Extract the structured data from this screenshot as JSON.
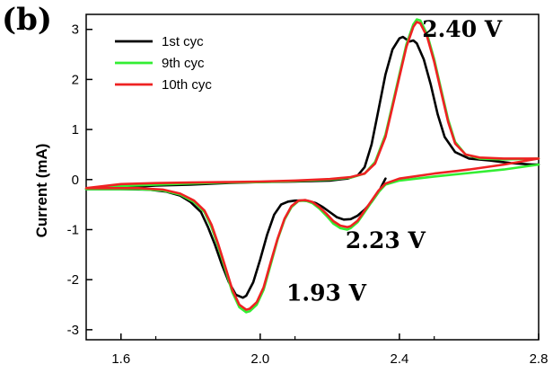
{
  "chart_data": {
    "type": "line",
    "panel_label": "(b)",
    "xlabel": "",
    "ylabel": "Current (mA)",
    "xlim": [
      1.5,
      2.8
    ],
    "ylim": [
      -3.2,
      3.3
    ],
    "x_ticks": [
      "1.6",
      "2.0",
      "2.4",
      "2.8"
    ],
    "x_tick_values": [
      1.6,
      2.0,
      2.4,
      2.8
    ],
    "y_ticks": [
      "-3",
      "-2",
      "-1",
      "0",
      "1",
      "2",
      "3"
    ],
    "y_tick_values": [
      -3,
      -2,
      -1,
      0,
      1,
      2,
      3
    ],
    "legend_position": "top-left",
    "annotations": [
      {
        "text": "2.40 V",
        "x": 2.58,
        "y": 2.85
      },
      {
        "text": "2.23 V",
        "x": 2.36,
        "y": -1.37
      },
      {
        "text": "1.93 V",
        "x": 2.19,
        "y": -2.42
      }
    ],
    "series": [
      {
        "name": "1st cyc",
        "color": "#000000",
        "points": [
          [
            2.36,
            0.02
          ],
          [
            2.34,
            -0.25
          ],
          [
            2.32,
            -0.45
          ],
          [
            2.3,
            -0.6
          ],
          [
            2.28,
            -0.72
          ],
          [
            2.26,
            -0.79
          ],
          [
            2.24,
            -0.8
          ],
          [
            2.22,
            -0.75
          ],
          [
            2.2,
            -0.65
          ],
          [
            2.18,
            -0.55
          ],
          [
            2.16,
            -0.47
          ],
          [
            2.14,
            -0.43
          ],
          [
            2.12,
            -0.42
          ],
          [
            2.1,
            -0.42
          ],
          [
            2.08,
            -0.44
          ],
          [
            2.06,
            -0.5
          ],
          [
            2.04,
            -0.7
          ],
          [
            2.02,
            -1.1
          ],
          [
            2.0,
            -1.6
          ],
          [
            1.98,
            -2.05
          ],
          [
            1.96,
            -2.32
          ],
          [
            1.95,
            -2.36
          ],
          [
            1.93,
            -2.3
          ],
          [
            1.91,
            -2.05
          ],
          [
            1.89,
            -1.7
          ],
          [
            1.87,
            -1.3
          ],
          [
            1.85,
            -0.95
          ],
          [
            1.83,
            -0.65
          ],
          [
            1.8,
            -0.45
          ],
          [
            1.77,
            -0.32
          ],
          [
            1.73,
            -0.24
          ],
          [
            1.68,
            -0.2
          ],
          [
            1.6,
            -0.19
          ],
          [
            1.5,
            -0.19
          ],
          [
            1.6,
            -0.16
          ],
          [
            1.7,
            -0.12
          ],
          [
            1.8,
            -0.1
          ],
          [
            1.9,
            -0.07
          ],
          [
            2.0,
            -0.05
          ],
          [
            2.1,
            -0.04
          ],
          [
            2.2,
            -0.02
          ],
          [
            2.25,
            0.02
          ],
          [
            2.28,
            0.08
          ],
          [
            2.3,
            0.25
          ],
          [
            2.32,
            0.7
          ],
          [
            2.34,
            1.4
          ],
          [
            2.36,
            2.1
          ],
          [
            2.38,
            2.6
          ],
          [
            2.4,
            2.82
          ],
          [
            2.41,
            2.85
          ],
          [
            2.42,
            2.8
          ],
          [
            2.43,
            2.76
          ],
          [
            2.44,
            2.78
          ],
          [
            2.45,
            2.72
          ],
          [
            2.47,
            2.4
          ],
          [
            2.49,
            1.9
          ],
          [
            2.51,
            1.3
          ],
          [
            2.53,
            0.85
          ],
          [
            2.56,
            0.55
          ],
          [
            2.6,
            0.42
          ],
          [
            2.66,
            0.38
          ],
          [
            2.72,
            0.33
          ],
          [
            2.78,
            0.3
          ],
          [
            2.8,
            0.3
          ]
        ]
      },
      {
        "name": "9th cyc",
        "color": "#33ee33",
        "points": [
          [
            2.8,
            0.3
          ],
          [
            2.7,
            0.2
          ],
          [
            2.6,
            0.13
          ],
          [
            2.5,
            0.06
          ],
          [
            2.4,
            -0.02
          ],
          [
            2.36,
            -0.1
          ],
          [
            2.34,
            -0.25
          ],
          [
            2.32,
            -0.45
          ],
          [
            2.3,
            -0.65
          ],
          [
            2.28,
            -0.85
          ],
          [
            2.26,
            -0.97
          ],
          [
            2.25,
            -1.0
          ],
          [
            2.23,
            -0.97
          ],
          [
            2.21,
            -0.88
          ],
          [
            2.19,
            -0.72
          ],
          [
            2.17,
            -0.58
          ],
          [
            2.15,
            -0.47
          ],
          [
            2.13,
            -0.42
          ],
          [
            2.11,
            -0.43
          ],
          [
            2.09,
            -0.55
          ],
          [
            2.07,
            -0.8
          ],
          [
            2.05,
            -1.2
          ],
          [
            2.03,
            -1.7
          ],
          [
            2.01,
            -2.2
          ],
          [
            1.99,
            -2.5
          ],
          [
            1.97,
            -2.63
          ],
          [
            1.96,
            -2.65
          ],
          [
            1.94,
            -2.55
          ],
          [
            1.92,
            -2.25
          ],
          [
            1.9,
            -1.8
          ],
          [
            1.88,
            -1.35
          ],
          [
            1.86,
            -0.95
          ],
          [
            1.84,
            -0.65
          ],
          [
            1.81,
            -0.45
          ],
          [
            1.77,
            -0.3
          ],
          [
            1.72,
            -0.22
          ],
          [
            1.65,
            -0.19
          ],
          [
            1.5,
            -0.19
          ],
          [
            1.6,
            -0.13
          ],
          [
            1.7,
            -0.1
          ],
          [
            1.8,
            -0.08
          ],
          [
            1.9,
            -0.06
          ],
          [
            2.0,
            -0.05
          ],
          [
            2.1,
            -0.03
          ],
          [
            2.2,
            0.0
          ],
          [
            2.26,
            0.04
          ],
          [
            2.3,
            0.12
          ],
          [
            2.33,
            0.35
          ],
          [
            2.36,
            0.9
          ],
          [
            2.38,
            1.5
          ],
          [
            2.4,
            2.1
          ],
          [
            2.42,
            2.7
          ],
          [
            2.44,
            3.1
          ],
          [
            2.45,
            3.2
          ],
          [
            2.46,
            3.18
          ],
          [
            2.48,
            2.9
          ],
          [
            2.5,
            2.4
          ],
          [
            2.52,
            1.8
          ],
          [
            2.54,
            1.2
          ],
          [
            2.56,
            0.75
          ],
          [
            2.59,
            0.5
          ],
          [
            2.63,
            0.42
          ],
          [
            2.7,
            0.4
          ],
          [
            2.8,
            0.42
          ]
        ]
      },
      {
        "name": "10th cyc",
        "color": "#ee2222",
        "points": [
          [
            2.8,
            0.42
          ],
          [
            2.7,
            0.3
          ],
          [
            2.6,
            0.2
          ],
          [
            2.5,
            0.12
          ],
          [
            2.4,
            0.02
          ],
          [
            2.36,
            -0.08
          ],
          [
            2.34,
            -0.22
          ],
          [
            2.32,
            -0.42
          ],
          [
            2.3,
            -0.62
          ],
          [
            2.28,
            -0.82
          ],
          [
            2.26,
            -0.93
          ],
          [
            2.25,
            -0.95
          ],
          [
            2.23,
            -0.92
          ],
          [
            2.21,
            -0.83
          ],
          [
            2.19,
            -0.68
          ],
          [
            2.17,
            -0.55
          ],
          [
            2.15,
            -0.45
          ],
          [
            2.13,
            -0.41
          ],
          [
            2.11,
            -0.42
          ],
          [
            2.09,
            -0.53
          ],
          [
            2.07,
            -0.78
          ],
          [
            2.05,
            -1.18
          ],
          [
            2.03,
            -1.65
          ],
          [
            2.01,
            -2.15
          ],
          [
            1.99,
            -2.45
          ],
          [
            1.97,
            -2.58
          ],
          [
            1.96,
            -2.6
          ],
          [
            1.94,
            -2.5
          ],
          [
            1.92,
            -2.2
          ],
          [
            1.9,
            -1.75
          ],
          [
            1.88,
            -1.3
          ],
          [
            1.86,
            -0.9
          ],
          [
            1.84,
            -0.62
          ],
          [
            1.81,
            -0.42
          ],
          [
            1.77,
            -0.28
          ],
          [
            1.72,
            -0.2
          ],
          [
            1.65,
            -0.17
          ],
          [
            1.5,
            -0.17
          ],
          [
            1.6,
            -0.09
          ],
          [
            1.7,
            -0.07
          ],
          [
            1.8,
            -0.06
          ],
          [
            1.9,
            -0.05
          ],
          [
            2.0,
            -0.04
          ],
          [
            2.1,
            -0.02
          ],
          [
            2.2,
            0.01
          ],
          [
            2.26,
            0.05
          ],
          [
            2.3,
            0.12
          ],
          [
            2.33,
            0.32
          ],
          [
            2.36,
            0.85
          ],
          [
            2.38,
            1.45
          ],
          [
            2.4,
            2.05
          ],
          [
            2.42,
            2.65
          ],
          [
            2.44,
            3.05
          ],
          [
            2.45,
            3.15
          ],
          [
            2.46,
            3.12
          ],
          [
            2.48,
            2.85
          ],
          [
            2.5,
            2.35
          ],
          [
            2.52,
            1.75
          ],
          [
            2.54,
            1.15
          ],
          [
            2.56,
            0.72
          ],
          [
            2.59,
            0.5
          ],
          [
            2.63,
            0.44
          ],
          [
            2.7,
            0.42
          ],
          [
            2.8,
            0.42
          ]
        ]
      }
    ]
  }
}
